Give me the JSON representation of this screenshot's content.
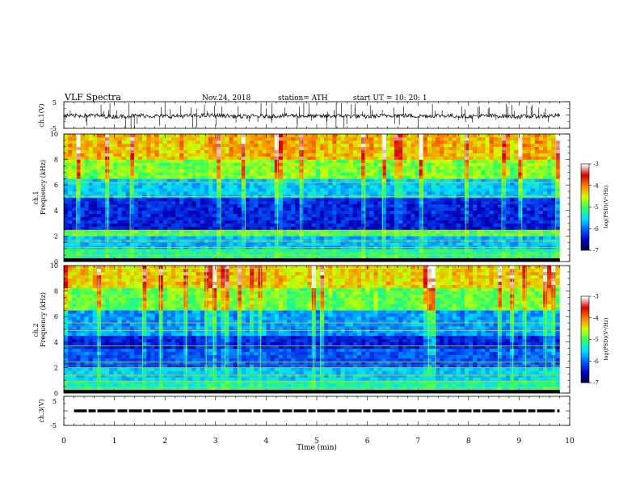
{
  "header": {
    "title": "VLF  Spectra",
    "date": "Nov.24, 2018",
    "station": "station= ATH",
    "start_ut": "start  UT  =   10: 20: 1"
  },
  "chart_data": [
    {
      "type": "line",
      "name": "ch1-waveform",
      "ylabel": "ch.1(V)",
      "ylim": [
        -5,
        5
      ],
      "yticks": [
        "5",
        "-5"
      ],
      "xlim": [
        0,
        10
      ],
      "note_values": "signal fluctuates around -0.3 V with impulsive spikes up to about +5 V and down to -5 V",
      "x": [
        0,
        0.5,
        1,
        1.5,
        2,
        2.5,
        3,
        3.5,
        4,
        4.5,
        5,
        5.5,
        6,
        6.5,
        7,
        7.5,
        8,
        8.5,
        9,
        9.5,
        9.8
      ],
      "y": [
        -0.4,
        -0.1,
        -0.6,
        -0.2,
        -0.5,
        -0.3,
        -0.1,
        -0.6,
        -0.4,
        -0.2,
        -0.5,
        -0.3,
        -0.6,
        -0.1,
        -0.4,
        -0.2,
        -0.5,
        -0.3,
        -0.6,
        -0.4,
        -0.2
      ]
    },
    {
      "type": "heatmap",
      "name": "ch1-spectrogram",
      "ylabel_top": "ch.1",
      "ylabel": "Frequency  (kHz)",
      "ylim": [
        0,
        10
      ],
      "yticks": [
        "10",
        "8",
        "6",
        "4",
        "2",
        "0"
      ],
      "xlim": [
        0,
        10
      ],
      "data_xmax": 9.8,
      "colorbar": {
        "label": "log(PSD)(V²/Hz)",
        "min": -7,
        "max": -3,
        "ticks": [
          "-3",
          "-4",
          "-5",
          "-6",
          "-7"
        ]
      },
      "bands": [
        {
          "f0": 0.0,
          "f1": 0.15,
          "level": -6.4
        },
        {
          "f0": 0.15,
          "f1": 0.9,
          "level": -5.2
        },
        {
          "f0": 0.9,
          "f1": 1.9,
          "level": -5.7
        },
        {
          "f0": 1.9,
          "f1": 2.6,
          "level": -5.0
        },
        {
          "f0": 2.6,
          "f1": 5.0,
          "level": -6.4
        },
        {
          "f0": 5.0,
          "f1": 6.6,
          "level": -5.7
        },
        {
          "f0": 6.6,
          "f1": 8.0,
          "level": -4.9
        },
        {
          "f0": 8.0,
          "f1": 10.0,
          "level": -4.4
        }
      ],
      "lines_khz": [
        0.5,
        1.1,
        1.6,
        2.15,
        2.45,
        5.1,
        6.2
      ]
    },
    {
      "type": "heatmap",
      "name": "ch2-spectrogram",
      "ylabel_top": "ch.2",
      "ylabel": "Frequency  (kHz)",
      "ylim": [
        0,
        10
      ],
      "yticks": [
        "10",
        "8",
        "6",
        "4",
        "2",
        "0"
      ],
      "xlim": [
        0,
        10
      ],
      "data_xmax": 9.8,
      "colorbar": {
        "label": "log(PSD)(V²/Hz)",
        "min": -7,
        "max": -3,
        "ticks": [
          "-3",
          "-4",
          "-5",
          "-6",
          "-7"
        ]
      },
      "bands": [
        {
          "f0": 0.0,
          "f1": 0.3,
          "level": -5.8
        },
        {
          "f0": 0.3,
          "f1": 1.0,
          "level": -5.3
        },
        {
          "f0": 1.0,
          "f1": 2.1,
          "level": -5.6
        },
        {
          "f0": 2.1,
          "f1": 3.4,
          "level": -6.1
        },
        {
          "f0": 3.4,
          "f1": 4.6,
          "level": -6.4
        },
        {
          "f0": 4.6,
          "f1": 6.6,
          "level": -5.9
        },
        {
          "f0": 6.6,
          "f1": 8.2,
          "level": -5.0
        },
        {
          "f0": 8.2,
          "f1": 10.0,
          "level": -4.5
        }
      ],
      "lines_khz": [
        0.4,
        0.9,
        1.4,
        2.0,
        2.45,
        3.7,
        4.9,
        5.5
      ]
    },
    {
      "type": "line",
      "name": "ch3-signal",
      "ylabel": "ch.3(V)",
      "ylim": [
        -5,
        5
      ],
      "yticks": [
        "5",
        "-5"
      ],
      "xlim": [
        0,
        10
      ],
      "xlabel": "Time  (min)",
      "xticks": [
        "0",
        "1",
        "2",
        "3",
        "4",
        "5",
        "6",
        "7",
        "8",
        "9",
        "10"
      ],
      "x": [
        0.2,
        9.8
      ],
      "y": [
        0,
        0
      ]
    }
  ],
  "colors": {
    "colormap": [
      "#000033",
      "#0000c0",
      "#0060ff",
      "#00e0ff",
      "#30ff60",
      "#d0ff00",
      "#ff8000",
      "#d00000",
      "#ffffff"
    ],
    "axis": "#000000",
    "trace": "#111111"
  }
}
